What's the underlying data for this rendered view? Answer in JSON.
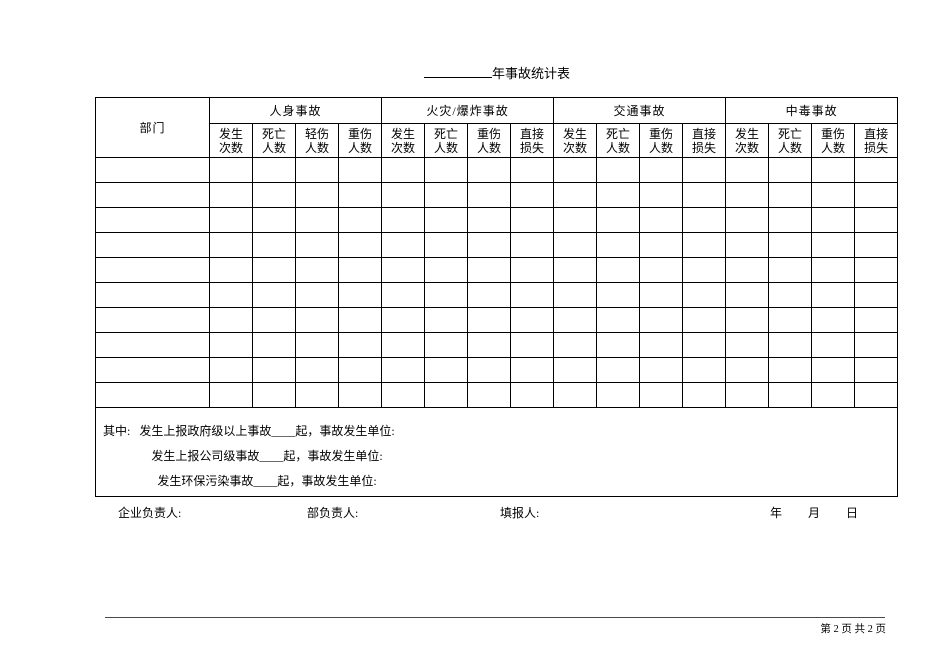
{
  "page": {
    "title": "年事故统计表",
    "page_footer": "第 2 页 共 2 页"
  },
  "table": {
    "dept_header": "部门",
    "groups": [
      {
        "label": "人身事故",
        "cols": [
          "发生\n次数",
          "死亡\n人数",
          "轻伤\n人数",
          "重伤\n人数"
        ]
      },
      {
        "label": "火灾/爆炸事故",
        "cols": [
          "发生\n次数",
          "死亡\n人数",
          "重伤\n人数",
          "直接\n损失"
        ]
      },
      {
        "label": "交通事故",
        "cols": [
          "发生\n次数",
          "死亡\n人数",
          "重伤\n人数",
          "直接\n损失"
        ]
      },
      {
        "label": "中毒事故",
        "cols": [
          "发生\n次数",
          "死亡\n人数",
          "重伤\n人数",
          "直接\n损失"
        ]
      }
    ],
    "empty_row_count": 10,
    "notes": {
      "label": "其中:",
      "lines": [
        "发生上报政府级以上事故____起，事故发生单位:",
        "发生上报公司级事故____起，事故发生单位:",
        "发生环保污染事故____起，事故发生单位:"
      ]
    }
  },
  "signatures": {
    "enterprise_label": "企业负责人:",
    "dept_label": "部负责人:",
    "filler_label": "填报人:",
    "year_label": "年",
    "month_label": "月",
    "day_label": "日"
  }
}
